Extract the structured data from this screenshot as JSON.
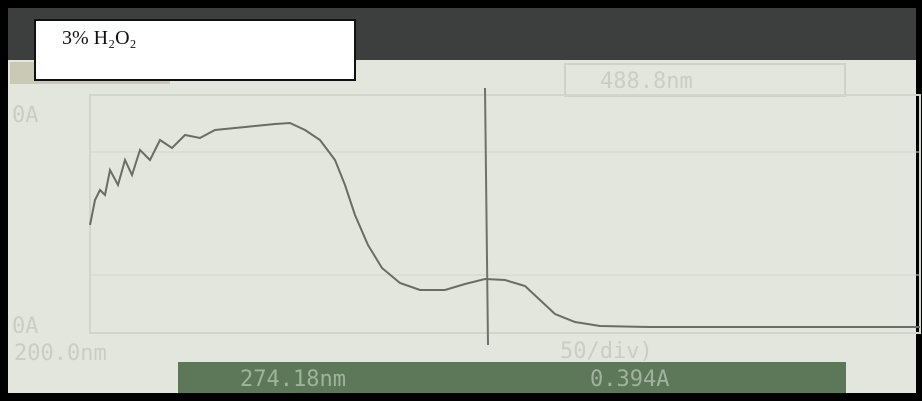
{
  "label": "3% H₂O₂",
  "screen": {
    "range_end": "488.8nm",
    "range_start": "200.0nm",
    "scale": "50/div)",
    "top_axis_label": "0A",
    "bottom_axis_label": "0A"
  },
  "status": {
    "wavelength": "274.18nm",
    "absorbance": "0.394A"
  }
}
